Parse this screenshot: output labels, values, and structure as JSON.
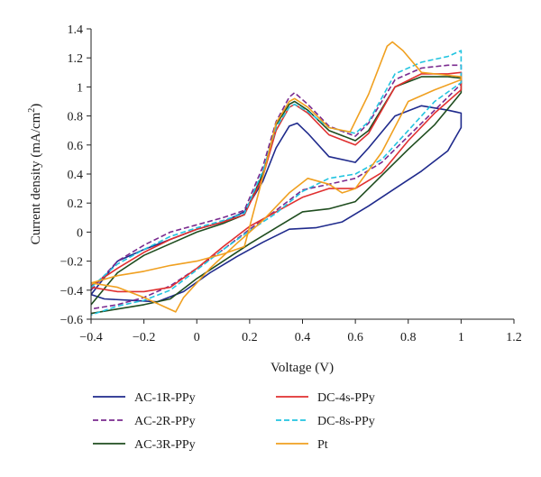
{
  "chart_data": {
    "type": "line",
    "title": "",
    "xlabel": "Voltage (V)",
    "ylabel_main": "Current density (mA/cm",
    "ylabel_sup": "2",
    "ylabel_end": ")",
    "xlim": [
      -0.4,
      1.2
    ],
    "ylim": [
      -0.6,
      1.4
    ],
    "xticks": [
      -0.4,
      -0.2,
      0,
      0.2,
      0.4,
      0.6,
      0.8,
      1,
      1.2
    ],
    "yticks": [
      -0.6,
      -0.4,
      -0.2,
      0,
      0.2,
      0.4,
      0.6,
      0.8,
      1,
      1.2,
      1.4
    ],
    "grid": false,
    "legend_position": "bottom",
    "series": [
      {
        "name": "AC-1R-PPy",
        "color": "#1f2a8c",
        "dash": "solid",
        "x": [
          -0.4,
          -0.3,
          -0.2,
          -0.1,
          0,
          0.1,
          0.18,
          0.25,
          0.3,
          0.35,
          0.38,
          0.42,
          0.5,
          0.6,
          0.65,
          0.75,
          0.85,
          0.95,
          1,
          1.0,
          0.95,
          0.85,
          0.75,
          0.65,
          0.55,
          0.45,
          0.35,
          0.25,
          0.15,
          0.05,
          -0.05,
          -0.15,
          -0.25,
          -0.35,
          -0.4
        ],
        "y": [
          -0.43,
          -0.2,
          -0.12,
          -0.05,
          0.02,
          0.07,
          0.14,
          0.35,
          0.58,
          0.73,
          0.75,
          0.68,
          0.52,
          0.48,
          0.58,
          0.8,
          0.87,
          0.84,
          0.82,
          0.72,
          0.56,
          0.42,
          0.3,
          0.18,
          0.07,
          0.03,
          0.02,
          -0.07,
          -0.17,
          -0.28,
          -0.41,
          -0.48,
          -0.47,
          -0.46,
          -0.43
        ]
      },
      {
        "name": "AC-2R-PPy",
        "color": "#7a2a8f",
        "dash": "dashed",
        "x": [
          -0.4,
          -0.3,
          -0.2,
          -0.1,
          0,
          0.1,
          0.18,
          0.25,
          0.3,
          0.35,
          0.37,
          0.42,
          0.5,
          0.6,
          0.65,
          0.75,
          0.85,
          0.95,
          1,
          1.0,
          0.9,
          0.8,
          0.7,
          0.6,
          0.5,
          0.4,
          0.3,
          0.2,
          0.1,
          0,
          -0.1,
          -0.2,
          -0.3,
          -0.4
        ],
        "y": [
          -0.4,
          -0.2,
          -0.09,
          0.0,
          0.05,
          0.1,
          0.15,
          0.45,
          0.76,
          0.93,
          0.96,
          0.88,
          0.73,
          0.66,
          0.75,
          1.05,
          1.13,
          1.15,
          1.15,
          1.02,
          0.84,
          0.66,
          0.48,
          0.37,
          0.33,
          0.29,
          0.15,
          0.02,
          -0.12,
          -0.25,
          -0.37,
          -0.45,
          -0.5,
          -0.53
        ]
      },
      {
        "name": "AC-3R-PPy",
        "color": "#1f4d1f",
        "dash": "solid",
        "x": [
          -0.4,
          -0.3,
          -0.2,
          -0.1,
          0,
          0.1,
          0.18,
          0.25,
          0.3,
          0.35,
          0.37,
          0.42,
          0.5,
          0.6,
          0.65,
          0.75,
          0.85,
          0.95,
          1,
          1.0,
          0.9,
          0.8,
          0.7,
          0.6,
          0.5,
          0.4,
          0.3,
          0.2,
          0.1,
          0,
          -0.1,
          -0.2,
          -0.3,
          -0.4
        ],
        "y": [
          -0.5,
          -0.28,
          -0.16,
          -0.08,
          0.0,
          0.06,
          0.12,
          0.4,
          0.74,
          0.88,
          0.9,
          0.84,
          0.7,
          0.63,
          0.7,
          1.0,
          1.07,
          1.07,
          1.06,
          0.96,
          0.74,
          0.57,
          0.39,
          0.21,
          0.16,
          0.14,
          0.03,
          -0.08,
          -0.2,
          -0.32,
          -0.46,
          -0.5,
          -0.53,
          -0.56
        ]
      },
      {
        "name": "DC-4s-PPy",
        "color": "#e03030",
        "dash": "solid",
        "x": [
          -0.4,
          -0.3,
          -0.2,
          -0.1,
          0,
          0.1,
          0.18,
          0.25,
          0.3,
          0.35,
          0.37,
          0.42,
          0.5,
          0.6,
          0.65,
          0.75,
          0.85,
          0.95,
          1,
          1.0,
          0.9,
          0.8,
          0.7,
          0.6,
          0.5,
          0.4,
          0.3,
          0.2,
          0.1,
          0,
          -0.1,
          -0.2,
          -0.3,
          -0.4
        ],
        "y": [
          -0.37,
          -0.25,
          -0.14,
          -0.05,
          0.02,
          0.07,
          0.12,
          0.38,
          0.7,
          0.86,
          0.88,
          0.82,
          0.67,
          0.6,
          0.68,
          1.0,
          1.09,
          1.09,
          1.1,
          0.98,
          0.82,
          0.63,
          0.41,
          0.3,
          0.3,
          0.24,
          0.14,
          0.04,
          -0.1,
          -0.25,
          -0.38,
          -0.41,
          -0.41,
          -0.38
        ]
      },
      {
        "name": "DC-8s-PPy",
        "color": "#22c4e0",
        "dash": "dashed",
        "x": [
          -0.4,
          -0.3,
          -0.2,
          -0.1,
          0,
          0.1,
          0.18,
          0.25,
          0.3,
          0.35,
          0.37,
          0.42,
          0.5,
          0.6,
          0.65,
          0.75,
          0.85,
          0.95,
          1,
          1.0,
          0.9,
          0.8,
          0.7,
          0.6,
          0.5,
          0.4,
          0.3,
          0.2,
          0.1,
          0,
          -0.1,
          -0.2,
          -0.3,
          -0.4
        ],
        "y": [
          -0.38,
          -0.22,
          -0.12,
          -0.03,
          0.03,
          0.08,
          0.13,
          0.42,
          0.72,
          0.86,
          0.88,
          0.83,
          0.72,
          0.68,
          0.76,
          1.09,
          1.17,
          1.21,
          1.25,
          1.03,
          0.9,
          0.7,
          0.5,
          0.4,
          0.37,
          0.28,
          0.13,
          0.01,
          -0.12,
          -0.26,
          -0.4,
          -0.47,
          -0.51,
          -0.57
        ]
      },
      {
        "name": "Pt",
        "color": "#f0a020",
        "dash": "solid",
        "x": [
          -0.4,
          -0.3,
          -0.2,
          -0.1,
          0,
          0.1,
          0.18,
          0.25,
          0.3,
          0.35,
          0.37,
          0.42,
          0.5,
          0.58,
          0.65,
          0.72,
          0.74,
          0.78,
          0.85,
          0.95,
          1,
          1.0,
          0.9,
          0.8,
          0.7,
          0.6,
          0.55,
          0.5,
          0.42,
          0.35,
          0.25,
          0.15,
          0.05,
          -0.05,
          -0.08,
          -0.2,
          -0.3,
          -0.4
        ],
        "y": [
          -0.35,
          -0.3,
          -0.27,
          -0.23,
          -0.2,
          -0.15,
          -0.1,
          0.38,
          0.75,
          0.9,
          0.92,
          0.86,
          0.72,
          0.69,
          0.95,
          1.28,
          1.31,
          1.25,
          1.1,
          1.08,
          1.07,
          1.05,
          0.98,
          0.9,
          0.55,
          0.3,
          0.27,
          0.33,
          0.37,
          0.27,
          0.08,
          -0.08,
          -0.25,
          -0.45,
          -0.55,
          -0.45,
          -0.38,
          -0.35
        ]
      }
    ]
  }
}
